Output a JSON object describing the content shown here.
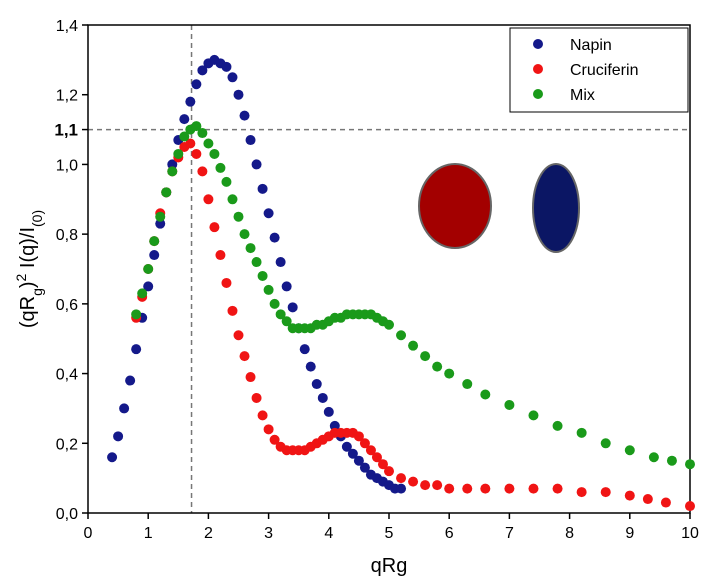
{
  "chart_data": {
    "type": "scatter",
    "xlabel": "qRg",
    "ylabel": [
      "(qR",
      "g",
      ")",
      "2",
      " I(q)/I",
      "(0)"
    ],
    "ylabel_style": [
      "normal",
      "sub",
      "normal",
      "sup",
      "normal",
      "sub"
    ],
    "xlim": [
      0,
      10
    ],
    "ylim": [
      0,
      1.4
    ],
    "xticks": [
      0,
      1,
      2,
      3,
      4,
      5,
      6,
      7,
      8,
      9,
      10
    ],
    "yticks": [
      {
        "value": 0,
        "label": "0,0"
      },
      {
        "value": 0.2,
        "label": "0,2"
      },
      {
        "value": 0.4,
        "label": "0,4"
      },
      {
        "value": 0.6,
        "label": "0,6"
      },
      {
        "value": 0.8,
        "label": "0,8"
      },
      {
        "value": 1.0,
        "label": "1,0"
      },
      {
        "value": 1.2,
        "label": "1,2"
      },
      {
        "value": 1.4,
        "label": "1,4"
      }
    ],
    "hlines": [
      {
        "value": 1.1,
        "label": "1,1"
      }
    ],
    "vlines": [
      1.72
    ],
    "legend": "top-right",
    "series": [
      {
        "name": "Napin",
        "color": "#14198a",
        "x": [
          0.4,
          0.5,
          0.6,
          0.7,
          0.8,
          0.9,
          1.0,
          1.1,
          1.2,
          1.3,
          1.4,
          1.5,
          1.6,
          1.7,
          1.8,
          1.9,
          2.0,
          2.1,
          2.2,
          2.3,
          2.4,
          2.5,
          2.6,
          2.7,
          2.8,
          2.9,
          3.0,
          3.1,
          3.2,
          3.3,
          3.4,
          3.5,
          3.6,
          3.7,
          3.8,
          3.9,
          4.0,
          4.1,
          4.2,
          4.3,
          4.4,
          4.5,
          4.6,
          4.7,
          4.8,
          4.9,
          5.0,
          5.1,
          5.2
        ],
        "values": [
          0.16,
          0.22,
          0.3,
          0.38,
          0.47,
          0.56,
          0.65,
          0.74,
          0.83,
          0.92,
          1.0,
          1.07,
          1.13,
          1.18,
          1.23,
          1.27,
          1.29,
          1.3,
          1.29,
          1.28,
          1.25,
          1.2,
          1.14,
          1.07,
          1.0,
          0.93,
          0.86,
          0.79,
          0.72,
          0.65,
          0.59,
          0.53,
          0.47,
          0.42,
          0.37,
          0.33,
          0.29,
          0.25,
          0.22,
          0.19,
          0.17,
          0.15,
          0.13,
          0.11,
          0.1,
          0.09,
          0.08,
          0.07,
          0.07
        ]
      },
      {
        "name": "Cruciferin",
        "color": "#f01414",
        "x": [
          0.8,
          0.9,
          1.0,
          1.1,
          1.2,
          1.3,
          1.4,
          1.5,
          1.6,
          1.7,
          1.8,
          1.9,
          2.0,
          2.1,
          2.2,
          2.3,
          2.4,
          2.5,
          2.6,
          2.7,
          2.8,
          2.9,
          3.0,
          3.1,
          3.2,
          3.3,
          3.4,
          3.5,
          3.6,
          3.7,
          3.8,
          3.9,
          4.0,
          4.1,
          4.2,
          4.3,
          4.4,
          4.5,
          4.6,
          4.7,
          4.8,
          4.9,
          5.0,
          5.2,
          5.4,
          5.6,
          5.8,
          6.0,
          6.3,
          6.6,
          7.0,
          7.4,
          7.8,
          8.2,
          8.6,
          9.0,
          9.3,
          9.6,
          10.0
        ],
        "values": [
          0.56,
          0.62,
          0.7,
          0.78,
          0.86,
          0.92,
          0.98,
          1.02,
          1.05,
          1.06,
          1.03,
          0.98,
          0.9,
          0.82,
          0.74,
          0.66,
          0.58,
          0.51,
          0.45,
          0.39,
          0.33,
          0.28,
          0.24,
          0.21,
          0.19,
          0.18,
          0.18,
          0.18,
          0.18,
          0.19,
          0.2,
          0.21,
          0.22,
          0.23,
          0.23,
          0.23,
          0.23,
          0.22,
          0.2,
          0.18,
          0.16,
          0.14,
          0.12,
          0.1,
          0.09,
          0.08,
          0.08,
          0.07,
          0.07,
          0.07,
          0.07,
          0.07,
          0.07,
          0.06,
          0.06,
          0.05,
          0.04,
          0.03,
          0.02
        ]
      },
      {
        "name": "Mix",
        "color": "#1a9a1a",
        "x": [
          0.8,
          0.9,
          1.0,
          1.1,
          1.2,
          1.3,
          1.4,
          1.5,
          1.6,
          1.7,
          1.8,
          1.9,
          2.0,
          2.1,
          2.2,
          2.3,
          2.4,
          2.5,
          2.6,
          2.7,
          2.8,
          2.9,
          3.0,
          3.1,
          3.2,
          3.3,
          3.4,
          3.5,
          3.6,
          3.7,
          3.8,
          3.9,
          4.0,
          4.1,
          4.2,
          4.3,
          4.4,
          4.5,
          4.6,
          4.7,
          4.8,
          4.9,
          5.0,
          5.2,
          5.4,
          5.6,
          5.8,
          6.0,
          6.3,
          6.6,
          7.0,
          7.4,
          7.8,
          8.2,
          8.6,
          9.0,
          9.4,
          9.7,
          10.0
        ],
        "values": [
          0.57,
          0.63,
          0.7,
          0.78,
          0.85,
          0.92,
          0.98,
          1.03,
          1.08,
          1.1,
          1.11,
          1.09,
          1.06,
          1.03,
          0.99,
          0.95,
          0.9,
          0.85,
          0.8,
          0.76,
          0.72,
          0.68,
          0.64,
          0.6,
          0.57,
          0.55,
          0.53,
          0.53,
          0.53,
          0.53,
          0.54,
          0.54,
          0.55,
          0.56,
          0.56,
          0.57,
          0.57,
          0.57,
          0.57,
          0.57,
          0.56,
          0.55,
          0.54,
          0.51,
          0.48,
          0.45,
          0.42,
          0.4,
          0.37,
          0.34,
          0.31,
          0.28,
          0.25,
          0.23,
          0.2,
          0.18,
          0.16,
          0.15,
          0.14
        ]
      }
    ]
  }
}
